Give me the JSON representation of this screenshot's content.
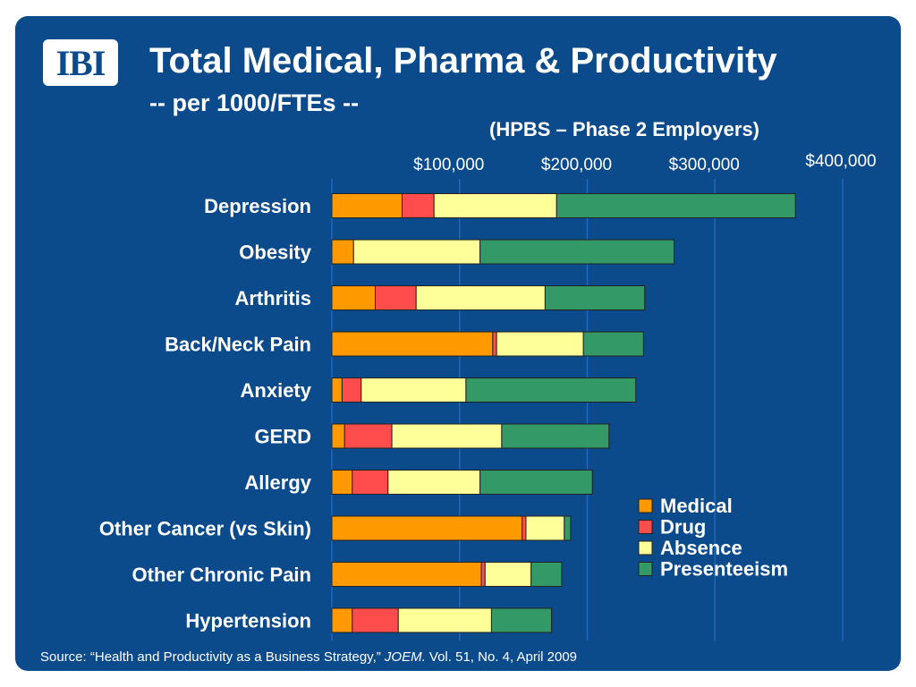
{
  "logo": {
    "text": "IBI"
  },
  "title": "Total Medical, Pharma & Productivity",
  "subtitle": "-- per 1000/FTEs --",
  "note": "(HPBS – Phase 2 Employers)",
  "source": {
    "prefix": "Source: “Health and Productivity as a Business Strategy,” ",
    "journal": "JOEM.",
    "suffix": " Vol. 51, No. 4, April 2009"
  },
  "colors": {
    "background": "#0b4a8b",
    "medical": "#ff9900",
    "drug": "#ff4d4d",
    "absence": "#ffff99",
    "presenteeism": "#339966",
    "gridline": "#1f66c2"
  },
  "chart_data": {
    "type": "bar",
    "orientation": "horizontal",
    "stacked": true,
    "categories": [
      "Depression",
      "Obesity",
      "Arthritis",
      "Back/Neck Pain",
      "Anxiety",
      "GERD",
      "Allergy",
      "Other Cancer (vs Skin)",
      "Other Chronic Pain",
      "Hypertension"
    ],
    "series": [
      {
        "name": "Medical",
        "values": [
          55000,
          17000,
          34000,
          126000,
          8000,
          10000,
          16000,
          149000,
          117000,
          16000
        ]
      },
      {
        "name": "Drug",
        "values": [
          25000,
          0,
          32000,
          3000,
          15000,
          37000,
          28000,
          3000,
          3000,
          36000
        ]
      },
      {
        "name": "Absence",
        "values": [
          96000,
          99000,
          101000,
          68000,
          82000,
          86000,
          72000,
          30000,
          36000,
          73000
        ]
      },
      {
        "name": "Presenteeism",
        "values": [
          187000,
          152000,
          78000,
          47000,
          133000,
          84000,
          88000,
          5000,
          24000,
          47000
        ]
      }
    ],
    "xlim": [
      0,
      400000
    ],
    "xticks": [
      100000,
      200000,
      300000,
      400000
    ],
    "xtick_labels": [
      "$100,000",
      "$200,000",
      "$300,000",
      "$400,000"
    ],
    "grid": true,
    "legend_position": "bottom-right"
  }
}
